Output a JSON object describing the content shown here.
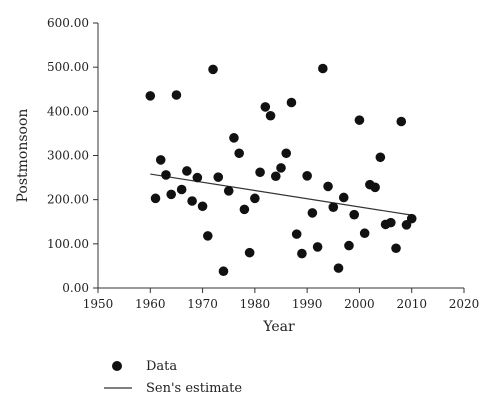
{
  "chart_data": {
    "type": "scatter",
    "xlabel": "Year",
    "ylabel": "Postmonsoon",
    "xlim": [
      1950,
      2020
    ],
    "ylim": [
      0,
      600
    ],
    "xticks": [
      "1950",
      "1960",
      "1970",
      "1980",
      "1990",
      "2000",
      "2010",
      "2020"
    ],
    "yticks": [
      "0.00",
      "100.00",
      "200.00",
      "300.00",
      "400.00",
      "500.00",
      "600.00"
    ],
    "grid": false,
    "legend_position": "bottom-left",
    "series": [
      {
        "name": "Data",
        "kind": "points",
        "color": "#111111",
        "points": [
          [
            1960,
            435
          ],
          [
            1961,
            203
          ],
          [
            1962,
            290
          ],
          [
            1963,
            256
          ],
          [
            1964,
            212
          ],
          [
            1965,
            437
          ],
          [
            1966,
            223
          ],
          [
            1967,
            265
          ],
          [
            1968,
            197
          ],
          [
            1969,
            250
          ],
          [
            1970,
            185
          ],
          [
            1971,
            118
          ],
          [
            1972,
            495
          ],
          [
            1973,
            251
          ],
          [
            1974,
            38
          ],
          [
            1975,
            220
          ],
          [
            1976,
            340
          ],
          [
            1977,
            305
          ],
          [
            1978,
            178
          ],
          [
            1979,
            80
          ],
          [
            1980,
            203
          ],
          [
            1981,
            262
          ],
          [
            1982,
            410
          ],
          [
            1983,
            390
          ],
          [
            1984,
            253
          ],
          [
            1985,
            272
          ],
          [
            1986,
            305
          ],
          [
            1987,
            420
          ],
          [
            1988,
            122
          ],
          [
            1989,
            78
          ],
          [
            1990,
            254
          ],
          [
            1991,
            170
          ],
          [
            1992,
            93
          ],
          [
            1993,
            497
          ],
          [
            1994,
            230
          ],
          [
            1995,
            183
          ],
          [
            1996,
            45
          ],
          [
            1997,
            205
          ],
          [
            1998,
            96
          ],
          [
            1999,
            166
          ],
          [
            2000,
            380
          ],
          [
            2001,
            124
          ],
          [
            2002,
            234
          ],
          [
            2003,
            228
          ],
          [
            2004,
            296
          ],
          [
            2005,
            144
          ],
          [
            2006,
            148
          ],
          [
            2007,
            90
          ],
          [
            2008,
            377
          ],
          [
            2009,
            143
          ],
          [
            2010,
            157
          ]
        ]
      },
      {
        "name": "Sen's estimate",
        "kind": "line",
        "color": "#333333",
        "points": [
          [
            1960,
            258
          ],
          [
            2010,
            165
          ]
        ]
      }
    ]
  }
}
